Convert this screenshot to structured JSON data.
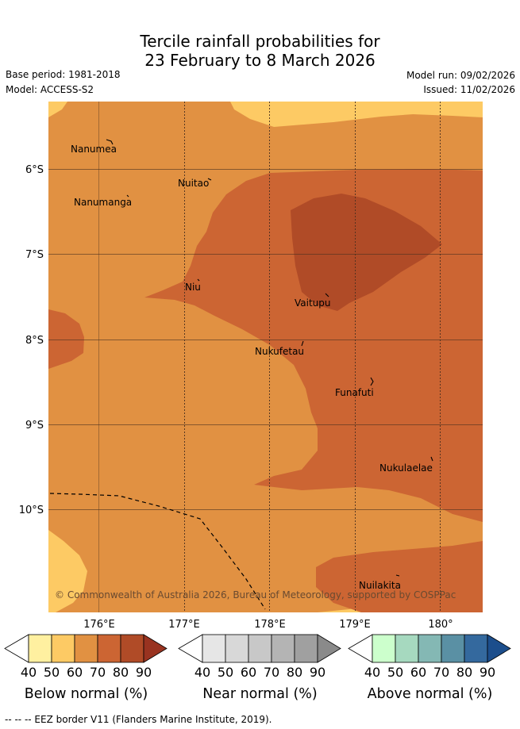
{
  "header": {
    "title_line1": "Tercile rainfall probabilities for",
    "title_line2": "23 February to 8 March 2026",
    "base_period": "Base period: 1981-2018",
    "model": "Model: ACCESS-S2",
    "model_run": "Model run: 09/02/2026",
    "issued": "Issued: 11/02/2026"
  },
  "map": {
    "lat_ticks": [
      "6°S",
      "7°S",
      "8°S",
      "9°S",
      "10°S"
    ],
    "lon_ticks": [
      "176°E",
      "177°E",
      "178°E",
      "179°E",
      "180°"
    ],
    "places": [
      {
        "name": "Nanumea"
      },
      {
        "name": "Nuitao"
      },
      {
        "name": "Nanumanga"
      },
      {
        "name": "Niu"
      },
      {
        "name": "Vaitupu"
      },
      {
        "name": "Nukufetau"
      },
      {
        "name": "Funafuti"
      },
      {
        "name": "Nukulaelae"
      },
      {
        "name": "Nuilakita"
      }
    ],
    "copyright": "© Commonwealth of Australia 2026, Bureau of Meteorology, supported by COSPPac",
    "colors": {
      "below_50_60": "#fdca64",
      "below_60_70": "#e19142",
      "below_70_80": "#cc6533",
      "below_80_90": "#b04b27",
      "grid": "#4a3020"
    }
  },
  "colorbars": [
    {
      "label": "Below normal (%)",
      "ticks": [
        "40",
        "50",
        "60",
        "70",
        "80",
        "90"
      ],
      "colors": [
        "#ffffff",
        "#fff0a0",
        "#fdca64",
        "#e19142",
        "#cc6533",
        "#b04b27",
        "#993320"
      ]
    },
    {
      "label": "Near normal (%)",
      "ticks": [
        "40",
        "50",
        "60",
        "70",
        "80",
        "90"
      ],
      "colors": [
        "#ffffff",
        "#e6e6e6",
        "#d8d8d8",
        "#c8c8c8",
        "#b4b4b4",
        "#a0a0a0",
        "#8a8a8a"
      ]
    },
    {
      "label": "Above normal (%)",
      "ticks": [
        "40",
        "50",
        "60",
        "70",
        "80",
        "90"
      ],
      "colors": [
        "#ffffff",
        "#ccffcc",
        "#a6d9bf",
        "#84b8b4",
        "#5a90a4",
        "#34699e",
        "#1c4e8c"
      ]
    }
  ],
  "footer": "--  --  -- EEZ border V11 (Flanders Marine Institute, 2019)."
}
